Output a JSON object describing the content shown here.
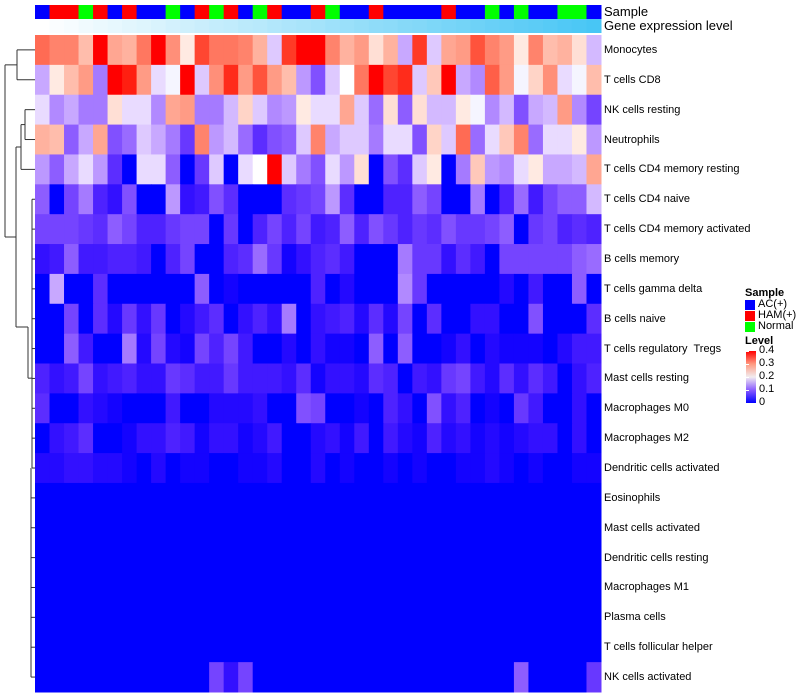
{
  "chart_data": {
    "type": "heatmap",
    "annotation_labels": {
      "sample": "Sample",
      "gene_level": "Gene expression level"
    },
    "samples": [
      "AC(+)",
      "HAM(+)",
      "HAM(+)",
      "Normal",
      "HAM(+)",
      "AC(+)",
      "HAM(+)",
      "AC(+)",
      "AC(+)",
      "Normal",
      "AC(+)",
      "HAM(+)",
      "Normal",
      "HAM(+)",
      "AC(+)",
      "Normal",
      "HAM(+)",
      "AC(+)",
      "AC(+)",
      "HAM(+)",
      "Normal",
      "AC(+)",
      "AC(+)",
      "HAM(+)",
      "AC(+)",
      "AC(+)",
      "AC(+)",
      "AC(+)",
      "HAM(+)",
      "AC(+)",
      "AC(+)",
      "Normal",
      "AC(+)",
      "Normal",
      "AC(+)",
      "AC(+)",
      "Normal",
      "Normal",
      "AC(+)"
    ],
    "gene_expression_level_rank": [
      0,
      0.03,
      0.05,
      0.08,
      0.11,
      0.13,
      0.16,
      0.18,
      0.21,
      0.24,
      0.26,
      0.29,
      0.32,
      0.34,
      0.37,
      0.39,
      0.42,
      0.45,
      0.47,
      0.5,
      0.53,
      0.55,
      0.58,
      0.61,
      0.63,
      0.66,
      0.68,
      0.71,
      0.74,
      0.76,
      0.79,
      0.82,
      0.84,
      0.87,
      0.89,
      0.92,
      0.95,
      0.97,
      1
    ],
    "rows": [
      "Monocytes",
      "T cells CD8",
      "NK cells resting",
      "Neutrophils",
      "T cells CD4 memory resting",
      "T cells CD4 naive",
      "T cells CD4 memory activated",
      "B cells memory",
      "T cells gamma delta",
      "B cells naive",
      "T cells regulatory  Tregs",
      "Mast cells resting",
      "Macrophages M0",
      "Macrophages M2",
      "Dendritic cells activated",
      "Eosinophils",
      "Mast cells activated",
      "Dendritic cells resting",
      "Macrophages M1",
      "Plasma cells",
      "T cells follicular helper",
      "NK cells activated"
    ],
    "values": [
      [
        0.32,
        0.3,
        0.3,
        0.25,
        0.4,
        0.27,
        0.26,
        0.31,
        0.4,
        0.29,
        0.21,
        0.35,
        0.31,
        0.31,
        0.3,
        0.26,
        0.17,
        0.36,
        0.4,
        0.4,
        0.3,
        0.26,
        0.28,
        0.22,
        0.26,
        0.15,
        0.36,
        0.17,
        0.27,
        0.28,
        0.34,
        0.3,
        0.28,
        0.21,
        0.3,
        0.25,
        0.26,
        0.22,
        0.16
      ],
      [
        0.15,
        0.21,
        0.25,
        0.28,
        0.12,
        0.4,
        0.38,
        0.28,
        0.18,
        0.19,
        0.4,
        0.17,
        0.29,
        0.37,
        0.28,
        0.34,
        0.28,
        0.25,
        0.14,
        0.09,
        0.17,
        0.2,
        0.31,
        0.4,
        0.35,
        0.37,
        0.17,
        0.24,
        0.4,
        0.15,
        0.13,
        0.33,
        0.28,
        0.19,
        0.23,
        0.29,
        0.18,
        0.19,
        0.25
      ],
      [
        0.18,
        0.13,
        0.15,
        0.12,
        0.12,
        0.22,
        0.18,
        0.18,
        0.13,
        0.27,
        0.28,
        0.12,
        0.12,
        0.16,
        0.23,
        0.17,
        0.13,
        0.14,
        0.21,
        0.18,
        0.18,
        0.27,
        0.17,
        0.11,
        0.22,
        0.1,
        0.22,
        0.16,
        0.16,
        0.21,
        0.19,
        0.13,
        0.16,
        0.09,
        0.15,
        0.16,
        0.28,
        0.13,
        0.08
      ],
      [
        0.26,
        0.25,
        0.1,
        0.15,
        0.27,
        0.09,
        0.11,
        0.17,
        0.15,
        0.12,
        0.07,
        0.3,
        0.14,
        0.16,
        0.11,
        0.06,
        0.09,
        0.1,
        0.17,
        0.3,
        0.15,
        0.17,
        0.17,
        0.12,
        0.18,
        0.18,
        0.09,
        0.23,
        0.17,
        0.32,
        0.11,
        0.18,
        0.24,
        0.3,
        0.11,
        0.18,
        0.18,
        0.21,
        0.14
      ],
      [
        0.14,
        0.1,
        0.15,
        0.18,
        0.14,
        0.06,
        0,
        0.18,
        0.18,
        0.1,
        0,
        0.07,
        0.17,
        0,
        0.18,
        0.2,
        0.4,
        0.17,
        0.12,
        0.09,
        0.18,
        0.14,
        0.22,
        0,
        0.09,
        0.06,
        0.17,
        0.21,
        0,
        0.12,
        0.24,
        0.14,
        0.13,
        0.18,
        0.21,
        0.15,
        0.15,
        0.16,
        0.27
      ],
      [
        0.1,
        0,
        0.08,
        0.12,
        0.05,
        0.03,
        0.09,
        0,
        0,
        0.14,
        0.03,
        0.04,
        0.09,
        0.06,
        0,
        0,
        0,
        0.06,
        0.07,
        0.08,
        0.14,
        0.06,
        0,
        0,
        0.05,
        0.05,
        0.1,
        0.08,
        0,
        0,
        0.12,
        0,
        0.05,
        0.11,
        0.04,
        0.08,
        0.1,
        0.1,
        0.16
      ],
      [
        0.08,
        0.08,
        0.08,
        0.07,
        0.06,
        0.1,
        0.08,
        0.05,
        0.05,
        0.07,
        0.08,
        0.08,
        0,
        0.07,
        0,
        0.05,
        0.08,
        0.05,
        0.08,
        0.04,
        0.05,
        0.1,
        0.05,
        0.09,
        0.07,
        0.05,
        0.07,
        0.06,
        0.09,
        0.07,
        0.07,
        0.08,
        0.1,
        0,
        0.07,
        0.08,
        0.05,
        0.06,
        0.05
      ],
      [
        0.03,
        0.04,
        0.1,
        0.04,
        0.04,
        0.05,
        0.05,
        0.04,
        0,
        0.05,
        0.08,
        0,
        0,
        0.05,
        0.06,
        0.11,
        0.07,
        0.01,
        0.03,
        0.05,
        0.06,
        0.04,
        0,
        0,
        0,
        0.12,
        0.07,
        0.07,
        0.03,
        0.06,
        0.04,
        0,
        0.08,
        0.08,
        0.08,
        0.08,
        0.08,
        0.1,
        0.11
      ],
      [
        0,
        0.15,
        0,
        0,
        0.06,
        0,
        0,
        0,
        0,
        0,
        0,
        0.1,
        0,
        0.01,
        0,
        0,
        0,
        0,
        0,
        0.05,
        0,
        0.02,
        0,
        0,
        0,
        0.13,
        0.07,
        0,
        0,
        0,
        0,
        0,
        0.02,
        0,
        0.04,
        0,
        0,
        0.1,
        0
      ],
      [
        0,
        0,
        0.08,
        0,
        0.06,
        0.02,
        0.07,
        0.03,
        0.07,
        0,
        0.02,
        0.04,
        0.06,
        0,
        0.03,
        0.05,
        0.03,
        0.12,
        0,
        0.03,
        0.04,
        0.05,
        0.02,
        0.06,
        0.02,
        0.08,
        0,
        0.06,
        0,
        0,
        0.03,
        0.03,
        0,
        0,
        0.09,
        0,
        0,
        0,
        0.06
      ],
      [
        0,
        0,
        0.1,
        0.04,
        0,
        0,
        0.12,
        0.02,
        0.08,
        0.02,
        0.01,
        0.08,
        0.05,
        0.08,
        0.04,
        0,
        0,
        0.02,
        0,
        0.03,
        0.01,
        0.01,
        0,
        0.1,
        0,
        0.1,
        0,
        0,
        0.01,
        0.03,
        0,
        0.02,
        0.01,
        0.01,
        0.01,
        0,
        0.02,
        0.04,
        0.04
      ],
      [
        0.05,
        0.03,
        0.04,
        0.08,
        0.03,
        0.04,
        0.05,
        0.03,
        0.03,
        0.07,
        0.06,
        0.04,
        0.04,
        0.07,
        0.04,
        0.04,
        0.04,
        0.03,
        0.06,
        0.01,
        0.03,
        0.03,
        0.02,
        0.06,
        0.05,
        0,
        0.04,
        0.03,
        0.07,
        0.08,
        0.04,
        0.02,
        0.06,
        0.03,
        0.06,
        0.04,
        0,
        0.03,
        0.05
      ],
      [
        0.06,
        0,
        0,
        0.03,
        0.02,
        0.01,
        0,
        0,
        0,
        0.04,
        0,
        0,
        0.02,
        0.02,
        0.02,
        0.03,
        0,
        0,
        0.09,
        0.08,
        0,
        0,
        0.01,
        0,
        0.05,
        0.03,
        0,
        0.09,
        0.03,
        0.05,
        0,
        0.01,
        0,
        0.07,
        0.04,
        0,
        0,
        0.03,
        0
      ],
      [
        0,
        0.03,
        0.04,
        0.06,
        0,
        0,
        0.01,
        0.03,
        0.03,
        0.05,
        0.04,
        0.01,
        0.03,
        0.03,
        0.01,
        0.02,
        0.04,
        0,
        0,
        0.02,
        0.03,
        0.01,
        0.04,
        0,
        0.04,
        0.02,
        0.01,
        0.05,
        0.02,
        0.03,
        0.01,
        0.02,
        0.01,
        0.02,
        0.03,
        0.03,
        0,
        0.03,
        0
      ],
      [
        0.02,
        0.02,
        0.03,
        0.03,
        0.02,
        0.02,
        0.01,
        0,
        0.02,
        0,
        0.01,
        0.01,
        0,
        0,
        0.01,
        0.01,
        0.02,
        0,
        0,
        0.02,
        0,
        0.01,
        0,
        0,
        0.01,
        0,
        0.01,
        0,
        0,
        0.01,
        0.01,
        0.02,
        0.01,
        0,
        0.01,
        0,
        0,
        0.01,
        0.01
      ],
      [
        0,
        0,
        0,
        0,
        0,
        0,
        0,
        0,
        0,
        0,
        0,
        0,
        0,
        0,
        0,
        0,
        0,
        0,
        0,
        0,
        0,
        0,
        0,
        0,
        0,
        0,
        0,
        0,
        0,
        0,
        0,
        0,
        0,
        0,
        0,
        0,
        0,
        0,
        0
      ],
      [
        0,
        0,
        0,
        0,
        0,
        0,
        0,
        0,
        0,
        0,
        0,
        0,
        0,
        0,
        0,
        0,
        0,
        0,
        0,
        0,
        0,
        0,
        0,
        0,
        0,
        0,
        0,
        0,
        0,
        0,
        0,
        0,
        0,
        0,
        0,
        0,
        0,
        0,
        0
      ],
      [
        0,
        0,
        0,
        0,
        0,
        0,
        0,
        0,
        0,
        0,
        0,
        0,
        0,
        0,
        0,
        0,
        0,
        0,
        0,
        0,
        0,
        0,
        0,
        0,
        0,
        0,
        0,
        0,
        0,
        0,
        0,
        0,
        0,
        0,
        0,
        0,
        0,
        0,
        0
      ],
      [
        0,
        0,
        0,
        0,
        0,
        0,
        0,
        0,
        0,
        0,
        0,
        0,
        0,
        0,
        0,
        0,
        0,
        0,
        0,
        0,
        0,
        0,
        0,
        0,
        0,
        0,
        0,
        0,
        0,
        0,
        0,
        0,
        0,
        0,
        0,
        0,
        0,
        0,
        0
      ],
      [
        0,
        0,
        0,
        0,
        0,
        0,
        0,
        0,
        0,
        0,
        0,
        0,
        0,
        0,
        0,
        0,
        0,
        0,
        0,
        0,
        0,
        0,
        0,
        0,
        0,
        0,
        0,
        0,
        0,
        0,
        0,
        0,
        0,
        0,
        0,
        0,
        0,
        0,
        0
      ],
      [
        0,
        0,
        0,
        0,
        0,
        0,
        0,
        0,
        0,
        0,
        0,
        0,
        0,
        0,
        0,
        0,
        0,
        0,
        0,
        0,
        0,
        0,
        0,
        0,
        0,
        0,
        0,
        0,
        0,
        0,
        0,
        0,
        0,
        0,
        0,
        0,
        0,
        0,
        0
      ],
      [
        0,
        0,
        0,
        0,
        0,
        0,
        0,
        0,
        0,
        0,
        0,
        0,
        0.08,
        0.03,
        0.08,
        0,
        0,
        0,
        0,
        0,
        0,
        0,
        0,
        0,
        0,
        0,
        0,
        0,
        0,
        0,
        0,
        0,
        0,
        0.1,
        0,
        0,
        0,
        0,
        0.07
      ]
    ],
    "color_scale": {
      "min": 0,
      "mid": 0.2,
      "max": 0.4,
      "low": "#0000ff",
      "midColor": "#ffffff",
      "high": "#ff0000"
    },
    "gene_level_colors": {
      "low": "#ffffff",
      "high": "#48c6f5"
    },
    "legend": {
      "sample_title": "Sample",
      "sample_items": [
        {
          "label": "AC(+)",
          "color": "#0000ff"
        },
        {
          "label": "HAM(+)",
          "color": "#ff0000"
        },
        {
          "label": "Normal",
          "color": "#00ff00"
        }
      ],
      "level_title": "Level",
      "level_ticks": [
        "0.4",
        "0.3",
        "0.2",
        "0.1",
        "0"
      ],
      "placement": "right"
    }
  }
}
